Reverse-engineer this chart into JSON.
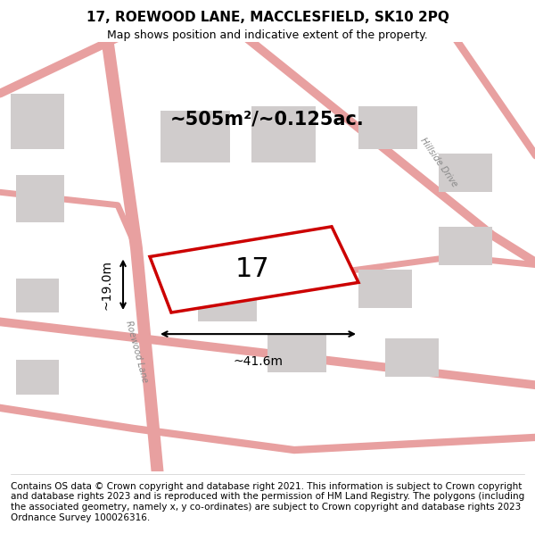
{
  "title": "17, ROEWOOD LANE, MACCLESFIELD, SK10 2PQ",
  "subtitle": "Map shows position and indicative extent of the property.",
  "footer": "Contains OS data © Crown copyright and database right 2021. This information is subject to Crown copyright and database rights 2023 and is reproduced with the permission of HM Land Registry. The polygons (including the associated geometry, namely x, y co-ordinates) are subject to Crown copyright and database rights 2023 Ordnance Survey 100026316.",
  "area_label": "~505m²/~0.125ac.",
  "number_label": "17",
  "dim_width": "~41.6m",
  "dim_height": "~19.0m",
  "bg_color": "#f0eeee",
  "map_bg": "#f5f3f3",
  "road_color": "#e8a0a0",
  "building_color": "#d8d4d4",
  "highlight_color": "#cc0000",
  "highlight_fill": "#ffffff",
  "road_label1": "Roewood Lane",
  "road_label2": "Hillside Drive",
  "title_fontsize": 11,
  "subtitle_fontsize": 9,
  "footer_fontsize": 7.5
}
